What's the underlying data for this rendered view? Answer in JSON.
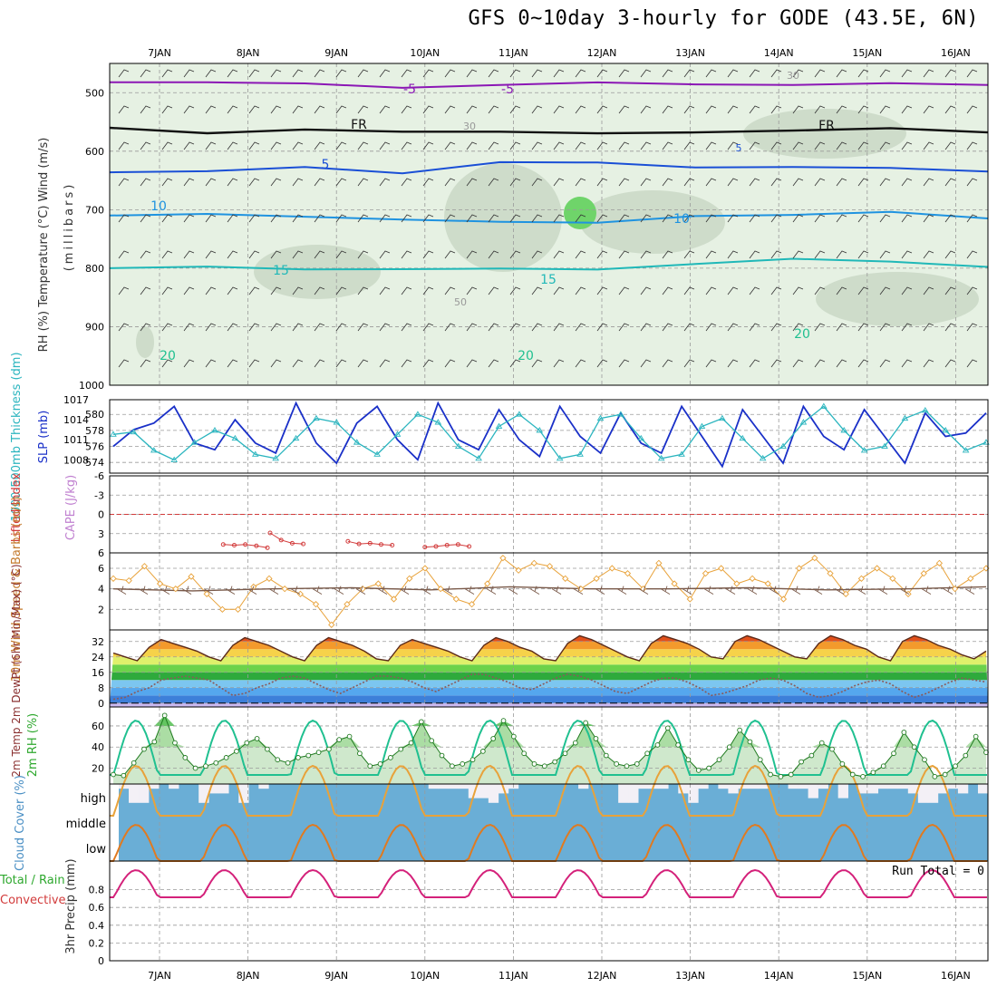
{
  "title": "GFS 0~10day 3-hourly for GODE (43.5E, 6N)",
  "colors": {
    "grid": "#9a9a9a",
    "rh_shade_light": "#e6f1e3",
    "rh_shade_mid": "#b9cbb6",
    "rh_shade_dark": "#6fd46a",
    "slp": "#1a30c8",
    "thickness": "#2bb5bf",
    "lifted_index": "#d23b3b",
    "wind_speed": "#e8a23a",
    "barb": "#7a5a4a",
    "dewpoint": "#8a5a5a",
    "rh2m": "#2ea82e",
    "cloud": "#6aaed6",
    "cloud_gap": "#f3f0f6"
  },
  "chart_data": [
    {
      "type": "line",
      "panel": "upper-air",
      "x_tick_labels_top": [
        "7JAN",
        "8JAN",
        "9JAN",
        "10JAN",
        "11JAN",
        "12JAN",
        "13JAN",
        "14JAN",
        "15JAN",
        "16JAN"
      ],
      "ylabel": "RH (%) Temperature (°C) Wind (m/s)",
      "ylabel_right_group": "(millibars)",
      "y_ticks": [
        500,
        600,
        700,
        800,
        900,
        1000
      ],
      "ylim": [
        450,
        1000
      ],
      "contour_labels": [
        "-5",
        "FR",
        "FR",
        "-5",
        "5",
        "10",
        "10",
        "15",
        "15",
        "20",
        "20",
        "20",
        "5",
        "30",
        "30",
        "50"
      ],
      "series": [
        {
          "name": "-5",
          "values": [
            482,
            480,
            487,
            490,
            486,
            485,
            483,
            488,
            485,
            484
          ]
        },
        {
          "name": "FR",
          "values": [
            560,
            567,
            566,
            565,
            566,
            572,
            565,
            566,
            562,
            565
          ]
        },
        {
          "name": "5",
          "values": [
            636,
            632,
            630,
            636,
            618,
            622,
            625,
            628,
            630,
            632
          ]
        },
        {
          "name": "10",
          "values": [
            710,
            705,
            715,
            715,
            720,
            725,
            708,
            710,
            705,
            712
          ]
        },
        {
          "name": "15",
          "values": [
            800,
            795,
            805,
            800,
            800,
            805,
            790,
            785,
            790,
            795
          ]
        }
      ]
    },
    {
      "type": "line",
      "panel": "slp-thickness",
      "ylabel_left": "1000-500mb Thickness (dm)",
      "ylabel_right": "SLP (mb)",
      "y_ticks_left": [
        574,
        576,
        578,
        580
      ],
      "y_ticks_right": [
        1008,
        1011,
        1014,
        1017
      ],
      "series": [
        {
          "name": "SLP (mb)",
          "values": [
            1010.0,
            1012.5,
            1013.5,
            1016.0,
            1010.5,
            1009.5,
            1014.0,
            1010.5,
            1009.0,
            1016.5,
            1010.5,
            1007.5,
            1013.5,
            1016.0,
            1011.0,
            1008.0,
            1016.5,
            1011.0,
            1009.5,
            1015.5,
            1011.0,
            1008.5,
            1016.0,
            1011.5,
            1009.0,
            1015.0,
            1010.5,
            1009.0,
            1016.0,
            1011.5,
            1007.0,
            1015.5,
            1011.5,
            1007.5,
            1016.0,
            1011.5,
            1009.5,
            1015.5,
            1011.5,
            1007.5,
            1015.0,
            1011.5,
            1012.0,
            1015.0
          ]
        },
        {
          "name": "Thickness (dm)",
          "values": [
            577.5,
            577.8,
            575.5,
            574.3,
            576.5,
            578.0,
            577.0,
            575.0,
            574.5,
            577.0,
            579.5,
            579.0,
            576.5,
            575.0,
            577.5,
            580.0,
            579.0,
            576.0,
            574.5,
            578.5,
            580.0,
            578.0,
            574.5,
            575.0,
            579.5,
            580.0,
            577.0,
            574.5,
            575.0,
            578.5,
            579.5,
            577.0,
            574.5,
            576.0,
            579.0,
            581.0,
            578.0,
            575.5,
            576.0,
            579.5,
            580.5,
            578.0,
            575.5,
            576.5
          ]
        }
      ]
    },
    {
      "type": "line",
      "panel": "cape-li",
      "ylabel_left": "Lifted Index",
      "ylabel_right": "CAPE (J/kg)",
      "y_ticks": [
        "-6",
        "-3",
        "0",
        "3",
        "6"
      ],
      "ylim": [
        -6,
        6
      ],
      "series": [
        {
          "name": "Lifted Index",
          "segments": [
            {
              "x_start": 1.72,
              "values": [
                4.7,
                4.8,
                4.7,
                4.9,
                5.2
              ]
            },
            {
              "x_start": 2.25,
              "values": [
                2.9,
                4.0,
                4.5,
                4.6
              ]
            },
            {
              "x_start": 3.13,
              "values": [
                4.2,
                4.6,
                4.5,
                4.7,
                4.8
              ]
            },
            {
              "x_start": 4.0,
              "values": [
                5.1,
                5.0,
                4.8,
                4.7,
                5.0
              ]
            }
          ]
        }
      ]
    },
    {
      "type": "line",
      "panel": "wind",
      "ylabel": "10m Wind Speed & Barbs (m/s)",
      "y_ticks": [
        2,
        4,
        6
      ],
      "ylim": [
        0,
        7.5
      ],
      "series": [
        {
          "name": "10m Wind Speed",
          "values": [
            5.0,
            4.8,
            6.2,
            4.5,
            4.0,
            5.2,
            3.5,
            2.0,
            2.0,
            4.2,
            5.0,
            4.0,
            3.5,
            2.5,
            0.5,
            2.5,
            4.0,
            4.5,
            3.0,
            5.0,
            6.0,
            4.0,
            3.0,
            2.5,
            4.5,
            7.0,
            5.8,
            6.5,
            6.2,
            5.0,
            4.0,
            5.0,
            6.0,
            5.5,
            4.0,
            6.5,
            4.5,
            3.0,
            5.5,
            6.0,
            4.5,
            5.0,
            4.5,
            3.0,
            6.0,
            7.0,
            5.5,
            3.5,
            5.0,
            6.0,
            5.0,
            3.5,
            5.5,
            6.5,
            4.0,
            5.0,
            6.0
          ]
        },
        {
          "name": "barb-speed",
          "values": [
            4.0,
            3.8,
            4.0,
            4.1,
            3.9,
            4.2,
            4.0,
            4.0,
            4.1,
            3.9,
            4.0,
            4.2
          ]
        }
      ]
    },
    {
      "type": "area",
      "panel": "temperature",
      "ylabel": "2m Temp 2m DewPt (6hr Min/Max) (°C)",
      "y_ticks": [
        0,
        8,
        16,
        24,
        32
      ],
      "ylim": [
        -2,
        38
      ],
      "series": [
        {
          "name": "2m Temp",
          "values": [
            26,
            24,
            22,
            29,
            33,
            31,
            29,
            27,
            24,
            22,
            30,
            34,
            32,
            30,
            27,
            24,
            22,
            30,
            34,
            32,
            30,
            27,
            23,
            22,
            30,
            33,
            31,
            29,
            27,
            24,
            22,
            30,
            34,
            32,
            29,
            27,
            23,
            22,
            31,
            35,
            33,
            30,
            27,
            24,
            22,
            31,
            35,
            33,
            31,
            28,
            24,
            23,
            32,
            35,
            33,
            30,
            27,
            24,
            23,
            31,
            35,
            33,
            30,
            28,
            24,
            22,
            32,
            35,
            33,
            30,
            28,
            25,
            23,
            27
          ]
        },
        {
          "name": "2m DewPt",
          "values": [
            2,
            3,
            6,
            8,
            12,
            13,
            14,
            13,
            12,
            8,
            4,
            5,
            8,
            10,
            13,
            14,
            13,
            10,
            7,
            5,
            8,
            11,
            14,
            14,
            13,
            11,
            8,
            6,
            9,
            12,
            15,
            15,
            13,
            11,
            8,
            7,
            10,
            13,
            15,
            14,
            12,
            9,
            6,
            5,
            8,
            11,
            13,
            13,
            11,
            8,
            4,
            5,
            7,
            9,
            12,
            13,
            12,
            9,
            5,
            3,
            4,
            6,
            9,
            11,
            12,
            10,
            6,
            3,
            5,
            8,
            11,
            13,
            12,
            11
          ]
        }
      ]
    },
    {
      "type": "area",
      "panel": "rh2m",
      "ylabel": "2m RH (%)",
      "y_ticks": [
        20,
        40,
        60
      ],
      "ylim": [
        5,
        78
      ],
      "series": [
        {
          "name": "2m RH",
          "values": [
            14,
            13,
            25,
            38,
            45,
            70,
            44,
            30,
            20,
            22,
            25,
            30,
            36,
            44,
            48,
            38,
            28,
            25,
            30,
            32,
            35,
            38,
            47,
            50,
            34,
            22,
            24,
            30,
            38,
            44,
            64,
            46,
            32,
            22,
            24,
            28,
            36,
            48,
            65,
            50,
            34,
            24,
            22,
            26,
            34,
            44,
            63,
            48,
            32,
            24,
            22,
            24,
            34,
            42,
            58,
            42,
            28,
            18,
            20,
            28,
            40,
            56,
            45,
            28,
            14,
            12,
            14,
            26,
            32,
            44,
            38,
            24,
            14,
            12,
            16,
            22,
            34,
            54,
            40,
            28,
            12,
            14,
            22,
            32,
            50,
            35
          ]
        }
      ]
    },
    {
      "type": "bar",
      "panel": "cloud",
      "ylabel": "Cloud Cover (%)",
      "y_tick_labels": [
        "high",
        "middle",
        "low"
      ],
      "series": [
        {
          "name": "high",
          "values": [
            20,
            80,
            80,
            20,
            0,
            20,
            0,
            0,
            80,
            40,
            40,
            0,
            80,
            0,
            20,
            0,
            0,
            0,
            0,
            0,
            0,
            0,
            0,
            0,
            0,
            0,
            0,
            0,
            0,
            0,
            0,
            20,
            20,
            20,
            20,
            60,
            60,
            80,
            40,
            20,
            0,
            0,
            0,
            0,
            0,
            0,
            20,
            0,
            0,
            0,
            80,
            80,
            20,
            20,
            20,
            0,
            40,
            80,
            20,
            0,
            20,
            40,
            20,
            20,
            20,
            0,
            0,
            20,
            20,
            60,
            20,
            0,
            60,
            0,
            40,
            40,
            20,
            20,
            20,
            40,
            80,
            80,
            40,
            20,
            40,
            0,
            40
          ]
        },
        {
          "name": "middle",
          "values": [
            0,
            0,
            0,
            0,
            0,
            0,
            0,
            0,
            0,
            0,
            0,
            0,
            0,
            0,
            0,
            0,
            0,
            0,
            0,
            0,
            0,
            0,
            0,
            0,
            0,
            0,
            0,
            0,
            0,
            0,
            0,
            0,
            0,
            0,
            0,
            0,
            0,
            0,
            0,
            0,
            0,
            0,
            0,
            0,
            0,
            0,
            0,
            0,
            0,
            0,
            0,
            0,
            0,
            0,
            0,
            0,
            0,
            0,
            0,
            0,
            0,
            0,
            0,
            0,
            0,
            0,
            0,
            0,
            0,
            0,
            0,
            0,
            0,
            0,
            0,
            0,
            0,
            0,
            0,
            0,
            0,
            0,
            0,
            0,
            0,
            0,
            0
          ]
        },
        {
          "name": "low",
          "values": [
            0,
            0,
            0,
            0,
            0,
            0,
            0,
            0,
            0,
            0,
            0,
            0,
            0,
            0,
            0,
            0,
            0,
            0,
            0,
            0,
            0,
            0,
            0,
            0,
            0,
            0,
            0,
            0,
            0,
            0,
            0,
            0,
            0,
            0,
            0,
            0,
            0,
            0,
            0,
            0,
            0,
            0,
            0,
            0,
            0,
            0,
            0,
            0,
            0,
            0,
            0,
            0,
            0,
            0,
            0,
            0,
            0,
            0,
            0,
            0,
            0,
            0,
            0,
            0,
            0,
            0,
            0,
            0,
            0,
            0,
            0,
            0,
            0,
            0,
            0,
            0,
            0,
            0,
            0,
            0,
            0,
            0,
            0,
            0,
            0,
            0,
            0
          ]
        }
      ]
    },
    {
      "type": "bar",
      "panel": "precip",
      "ylabel_left": "Total / Rain",
      "ylabel_left2": "Convective",
      "ylabel_right": "3hr Precip (mm)",
      "y_ticks": [
        "0",
        "0.2",
        "0.4",
        "0.6",
        "0.8"
      ],
      "ylim": [
        0,
        1
      ],
      "annotation": "Run Total = 0",
      "x_tick_labels_bottom": [
        "7JAN",
        "8JAN",
        "9JAN",
        "10JAN",
        "11JAN",
        "12JAN",
        "13JAN",
        "14JAN",
        "15JAN",
        "16JAN"
      ],
      "series": [
        {
          "name": "3hr Precip",
          "values": []
        }
      ]
    }
  ]
}
